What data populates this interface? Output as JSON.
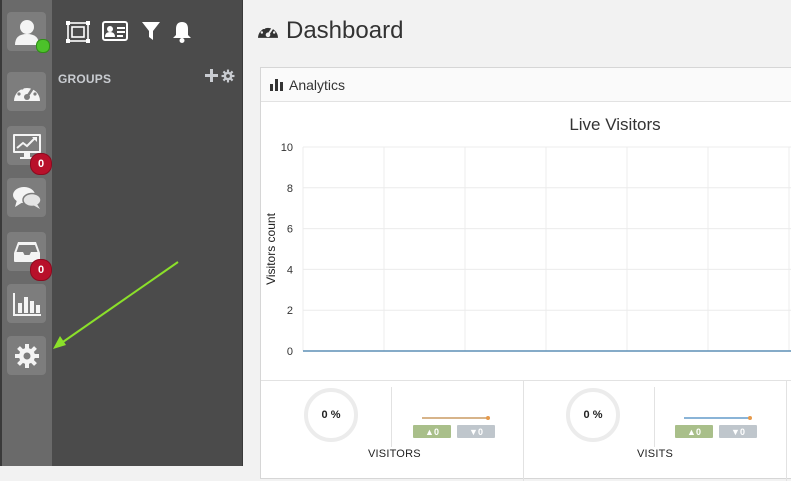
{
  "rail": {
    "monitor_badge": "0",
    "inbox_badge": "0"
  },
  "groups": {
    "title": "GROUPS"
  },
  "header": {
    "title": "Dashboard"
  },
  "panel": {
    "title": "Analytics"
  },
  "chart_data": {
    "type": "line",
    "title": "Live Visitors",
    "xlabel": "",
    "ylabel": "Visitors count",
    "ylim": [
      0,
      10
    ],
    "yticks": [
      "10",
      "8",
      "6",
      "4",
      "2",
      "0"
    ],
    "series": [
      {
        "values": [
          0,
          0,
          0,
          0,
          0,
          0,
          0,
          0
        ],
        "color": "#5d8fb5"
      }
    ]
  },
  "stats": [
    {
      "percent": "0 %",
      "label": "VISITORS",
      "up": "▲0",
      "down": "▼0",
      "trend_color": "#d7b48a"
    },
    {
      "percent": "0 %",
      "label": "VISITS",
      "up": "▲0",
      "down": "▼0",
      "trend_color": "#8ab4d7"
    }
  ],
  "colors": {
    "badge": "#b8102a",
    "status_online": "#4cc22a",
    "chip_up": "#a9bf8a",
    "chip_down": "#bfc6cc"
  }
}
